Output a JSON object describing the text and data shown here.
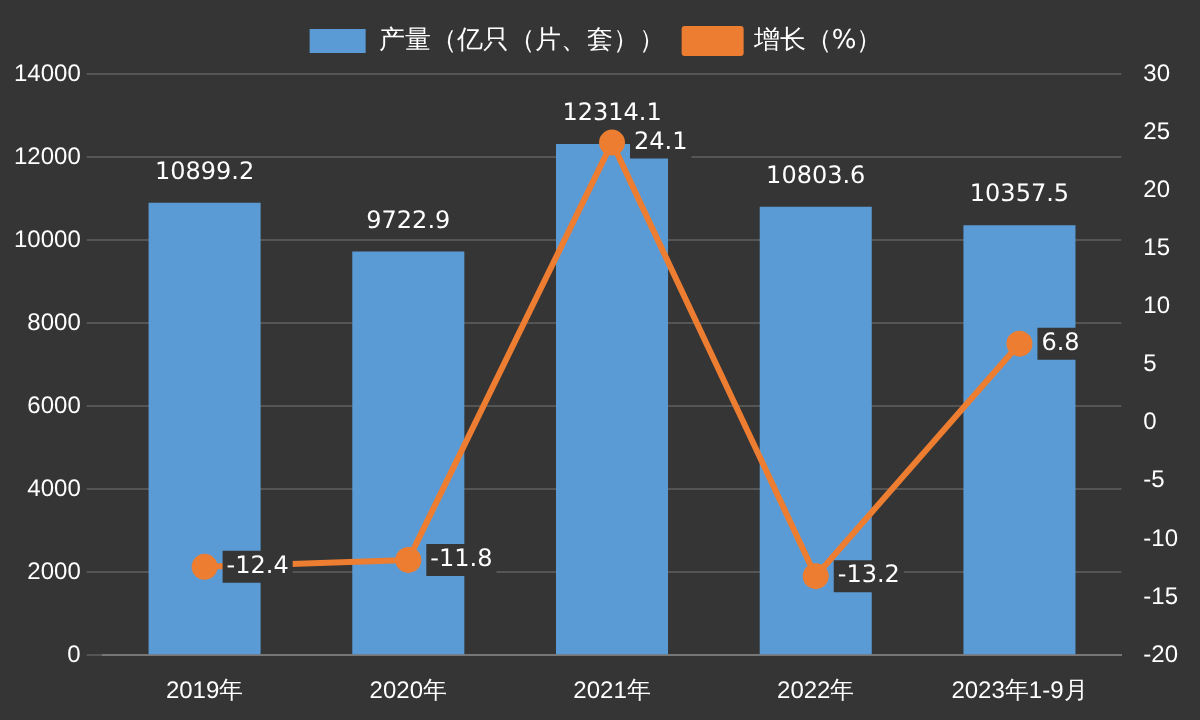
{
  "chart_data": {
    "type": "bar",
    "categories": [
      "2019年",
      "2020年",
      "2021年",
      "2022年",
      "2023年1-9月"
    ],
    "series": [
      {
        "name": "产量（亿只（片、套））",
        "color": "#5b9bd5",
        "values": [
          10899.2,
          9722.9,
          12314.1,
          10803.6,
          10357.5
        ]
      },
      {
        "name": "增长（%）",
        "type": "line",
        "axis": "y2",
        "color": "#ed7d31",
        "values": [
          -12.4,
          -11.8,
          24.1,
          -13.2,
          6.8
        ]
      }
    ],
    "ylim": [
      0,
      14000
    ],
    "yticks": [
      0,
      2000,
      4000,
      6000,
      8000,
      10000,
      12000,
      14000
    ],
    "y2lim": [
      -20,
      30
    ],
    "y2ticks": [
      -20,
      -15,
      -10,
      -5,
      0,
      5,
      10,
      15,
      20,
      25,
      30
    ],
    "grid": "y",
    "legend": "top",
    "marker": "circle",
    "data_labels": true
  }
}
